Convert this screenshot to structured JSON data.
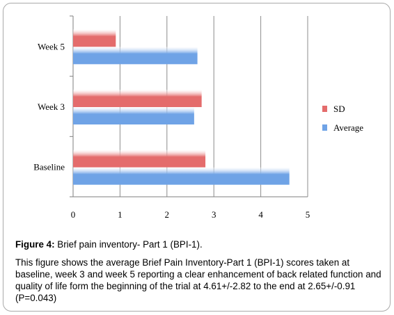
{
  "chart_data": {
    "type": "bar",
    "orientation": "horizontal",
    "categories": [
      "Baseline",
      "Week 3",
      "Week 5"
    ],
    "series": [
      {
        "name": "Average",
        "values": [
          4.61,
          2.58,
          2.65
        ],
        "color": "#6fa3e6"
      },
      {
        "name": "SD",
        "values": [
          2.82,
          2.74,
          0.91
        ],
        "color": "#e46c6c"
      }
    ],
    "xlim": [
      0,
      5
    ],
    "xticks": [
      "0",
      "1",
      "2",
      "3",
      "4",
      "5"
    ],
    "grid": true,
    "legend_position": "right"
  },
  "caption": {
    "figure_label": "Figure 4:",
    "title": "Brief pain inventory- Part 1 (BPI-1).",
    "body": "This figure shows the average Brief Pain Inventory-Part 1 (BPI-1) scores taken at baseline, week 3 and week 5 reporting a clear enhancement of back related function and quality of life form the beginning of the trial at 4.61+/-2.82 to the end at 2.65+/-0.91 (P=0.043)"
  }
}
